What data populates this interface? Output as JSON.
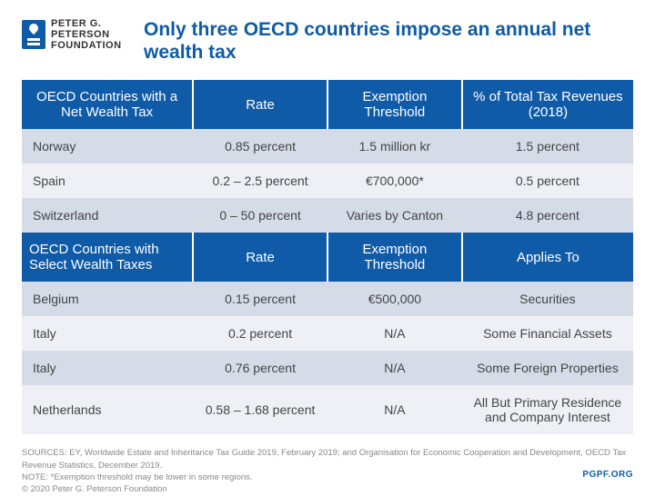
{
  "logo": {
    "line1": "PETER G.",
    "line2": "PETERSON",
    "line3": "FOUNDATION"
  },
  "title": "Only three OECD countries impose an annual net wealth tax",
  "table": {
    "header1": {
      "col1": "OECD Countries with a Net Wealth Tax",
      "col2": "Rate",
      "col3": "Exemption Threshold",
      "col4": "% of Total Tax Revenues (2018)"
    },
    "section1_rows": [
      {
        "country": "Norway",
        "rate": "0.85 percent",
        "exemption": "1.5 million kr",
        "value": "1.5 percent"
      },
      {
        "country": "Spain",
        "rate": "0.2 – 2.5 percent",
        "exemption": "€700,000*",
        "value": "0.5 percent"
      },
      {
        "country": "Switzerland",
        "rate": "0 – 50 percent",
        "exemption": "Varies by Canton",
        "value": "4.8 percent"
      }
    ],
    "header2": {
      "col1": "OECD Countries with Select Wealth Taxes",
      "col2": "Rate",
      "col3": "Exemption Threshold",
      "col4": "Applies To"
    },
    "section2_rows": [
      {
        "country": "Belgium",
        "rate": "0.15 percent",
        "exemption": "€500,000",
        "value": "Securities"
      },
      {
        "country": "Italy",
        "rate": "0.2 percent",
        "exemption": "N/A",
        "value": "Some Financial Assets"
      },
      {
        "country": "Italy",
        "rate": "0.76 percent",
        "exemption": "N/A",
        "value": "Some Foreign Properties"
      },
      {
        "country": "Netherlands",
        "rate": "0.58 – 1.68 percent",
        "exemption": "N/A",
        "value": "All But Primary Residence and Company Interest"
      }
    ]
  },
  "footer": {
    "sources": "SOURCES: EY, Worldwide Estate and Inheritance Tax Guide 2019, February 2019; and Organisation for Economic Cooperation and Development, OECD Tax Revenue Statistics, December 2019.",
    "note": "NOTE: *Exemption threshold may be lower in some regions.",
    "copyright": "© 2020 Peter G. Peterson Foundation",
    "url": "PGPF.ORG"
  },
  "colors": {
    "header_bg": "#0f5ba8",
    "row_even": "#d5dce8",
    "row_odd": "#eef0f6",
    "title_color": "#0f5ba8",
    "text_color": "#444444",
    "footer_color": "#888888"
  }
}
